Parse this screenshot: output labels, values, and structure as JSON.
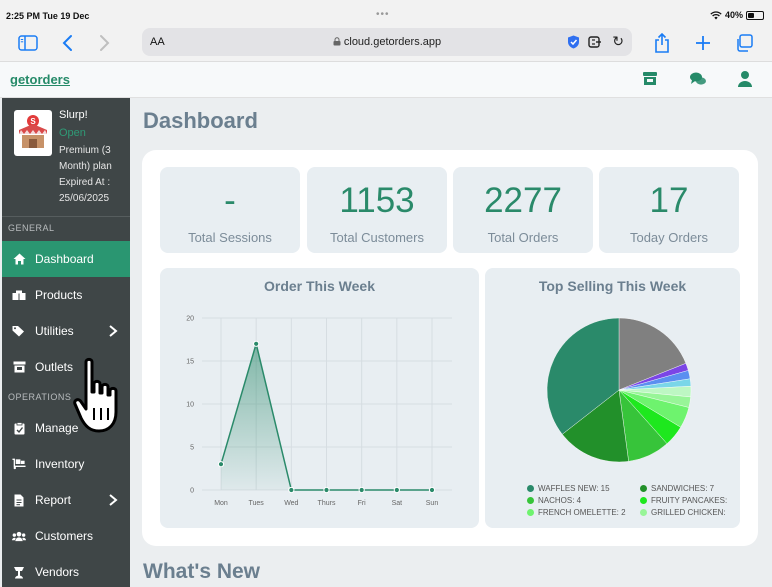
{
  "status_bar": {
    "time": "2:25 PM  Tue 19 Dec",
    "dots": "•••",
    "battery": "40%",
    "battery_level": 0.4
  },
  "browser": {
    "text_size_label": "AA",
    "url": "cloud.getorders.app"
  },
  "app": {
    "brand": "getorders"
  },
  "profile": {
    "name": "Slurp!",
    "status": "Open",
    "plan": "Premium (3 Month) plan Expired At : 25/06/2025"
  },
  "sidebar": {
    "general_label": "GENERAL",
    "operations_label": "OPERATIONS",
    "items": [
      {
        "label": "Dashboard",
        "icon": "home-icon"
      },
      {
        "label": "Products",
        "icon": "boxes-icon"
      },
      {
        "label": "Utilities",
        "icon": "tags-icon"
      },
      {
        "label": "Outlets",
        "icon": "store-icon"
      },
      {
        "label": "Manage",
        "icon": "clipboard-icon"
      },
      {
        "label": "Inventory",
        "icon": "dolly-icon"
      },
      {
        "label": "Report",
        "icon": "report-icon"
      },
      {
        "label": "Customers",
        "icon": "users-icon"
      },
      {
        "label": "Vendors",
        "icon": "vendor-icon"
      }
    ]
  },
  "main": {
    "title": "Dashboard",
    "stats": [
      {
        "value": "-",
        "label": "Total Sessions"
      },
      {
        "value": "1153",
        "label": "Total Customers"
      },
      {
        "value": "2277",
        "label": "Total Orders"
      },
      {
        "value": "17",
        "label": "Today Orders"
      }
    ],
    "whats_new": "What's New"
  },
  "colors": {
    "accent": "#2a9671",
    "sidebar": "#3f4647",
    "brand": "#258a68"
  },
  "chart_data": [
    {
      "type": "area",
      "title": "Order This Week",
      "categories": [
        "Mon",
        "Tues",
        "Wed",
        "Thurs",
        "Fri",
        "Sat",
        "Sun"
      ],
      "values": [
        3,
        17,
        0,
        0,
        0,
        0,
        0
      ],
      "yticks": [
        "0",
        "5",
        "10",
        "15",
        "20"
      ],
      "ylim": [
        0,
        20
      ],
      "grid": true
    },
    {
      "type": "pie",
      "title": "Top Selling This Week",
      "legend_placement": "bottom",
      "slices": [
        {
          "label": "WAFFLES NEW: 15",
          "value": 15,
          "color": "#2a8a6a"
        },
        {
          "label": "SANDWICHES: 7",
          "value": 7,
          "color": "#22902a"
        },
        {
          "label": "NACHOS: 4",
          "value": 4,
          "color": "#37c43a"
        },
        {
          "label": "FRUITY PANCAKES:",
          "value": 2,
          "color": "#1ee81e"
        },
        {
          "label": "FRENCH OMELETTE: 2",
          "value": 2,
          "color": "#6ef36e"
        },
        {
          "label": "GRILLED CHICKEN:",
          "value": 1,
          "color": "#98f598"
        },
        {
          "label": "",
          "value": 1,
          "color": "#bdf7c3"
        },
        {
          "label": "",
          "value": 0.7,
          "color": "#7ad6e8"
        },
        {
          "label": "",
          "value": 0.8,
          "color": "#5b8ff0"
        },
        {
          "label": "",
          "value": 0.7,
          "color": "#7b45e6"
        },
        {
          "label": "",
          "value": 8,
          "color": "#808080"
        }
      ]
    }
  ]
}
